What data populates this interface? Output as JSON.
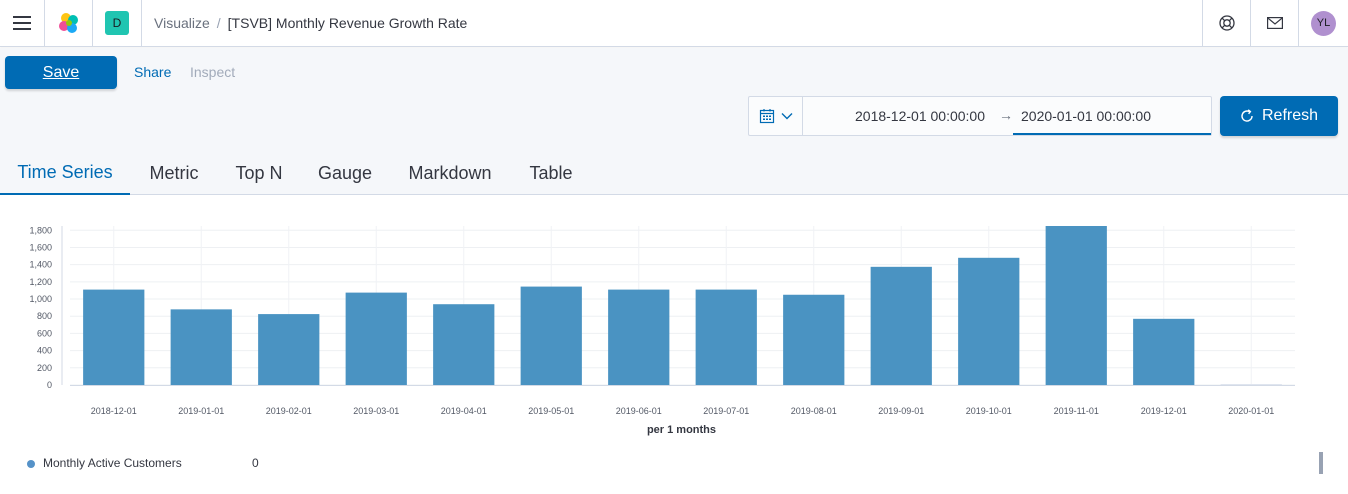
{
  "header": {
    "space_initial": "D",
    "breadcrumb_parent": "Visualize",
    "breadcrumb_separator": "/",
    "breadcrumb_current": "[TSVB] Monthly Revenue Growth Rate",
    "avatar_initials": "YL",
    "icons": [
      "menu-icon",
      "elastic-logo-icon",
      "help-icon",
      "mail-icon"
    ]
  },
  "toolbar": {
    "save_label": "Save",
    "share_label": "Share",
    "inspect_label": "Inspect",
    "date_start": "2018-12-01 00:00:00",
    "date_arrow": "→",
    "date_end": "2020-01-01 00:00:00",
    "refresh_label": "Refresh",
    "accent_color": "#006bb4"
  },
  "tabs": [
    {
      "label": "Time Series",
      "active": true
    },
    {
      "label": "Metric",
      "active": false
    },
    {
      "label": "Top N",
      "active": false
    },
    {
      "label": "Gauge",
      "active": false
    },
    {
      "label": "Markdown",
      "active": false
    },
    {
      "label": "Table",
      "active": false
    }
  ],
  "chart_data": {
    "type": "bar",
    "categories": [
      "2018-12-01",
      "2019-01-01",
      "2019-02-01",
      "2019-03-01",
      "2019-04-01",
      "2019-05-01",
      "2019-06-01",
      "2019-07-01",
      "2019-08-01",
      "2019-09-01",
      "2019-10-01",
      "2019-11-01",
      "2019-12-01",
      "2020-01-01"
    ],
    "series": [
      {
        "name": "Monthly Active Customers",
        "values": [
          1110,
          880,
          825,
          1075,
          940,
          1145,
          1110,
          1110,
          1050,
          1375,
          1480,
          1850,
          770,
          0
        ],
        "color": "#4a93c2"
      }
    ],
    "yticks": [
      0,
      200,
      400,
      600,
      800,
      1000,
      1200,
      1400,
      1600,
      1800
    ],
    "ylim": [
      0,
      1850
    ],
    "xlabel": "per 1 months",
    "ylabel": "",
    "grid": true
  },
  "legend": {
    "name": "Monthly Active Customers",
    "value": "0"
  }
}
